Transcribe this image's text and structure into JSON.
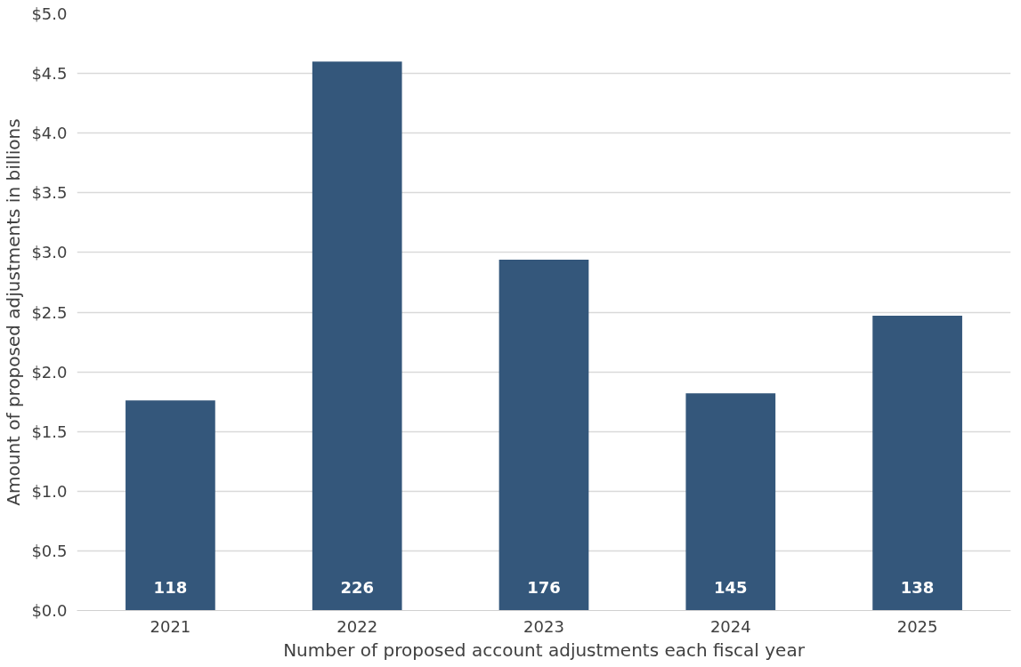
{
  "chart_data": {
    "type": "bar",
    "xlabel": "Number of proposed account adjustments each fiscal year",
    "ylabel": "Amount of proposed adjustments in billions",
    "categories": [
      "2021",
      "2022",
      "2023",
      "2024",
      "2025"
    ],
    "values": [
      1.76,
      4.6,
      2.94,
      1.82,
      2.47
    ],
    "color": "#34577b",
    "ylim": [
      0,
      5
    ],
    "yticks": [
      {
        "value": 0,
        "label": "$0.0"
      },
      {
        "value": 0.5,
        "label": "$0.5"
      },
      {
        "value": 1,
        "label": "$1.0"
      },
      {
        "value": 1.5,
        "label": "$1.5"
      },
      {
        "value": 2,
        "label": "$2.0"
      },
      {
        "value": 2.5,
        "label": "$2.5"
      },
      {
        "value": 3,
        "label": "$3.0"
      },
      {
        "value": 3.5,
        "label": "$3.5"
      },
      {
        "value": 4,
        "label": "$4.0"
      },
      {
        "value": 4.5,
        "label": "$4.5"
      },
      {
        "value": 5,
        "label": "$5.0"
      }
    ],
    "grid": "y",
    "annotations": [
      "118",
      "226",
      "176",
      "145",
      "138"
    ]
  }
}
